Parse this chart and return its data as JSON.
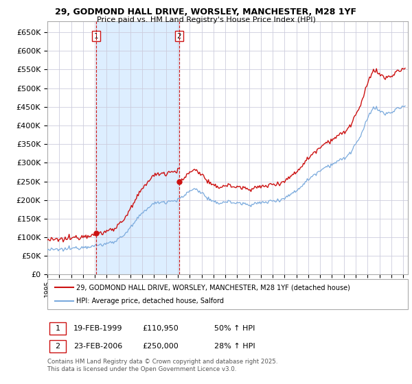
{
  "title": "29, GODMOND HALL DRIVE, WORSLEY, MANCHESTER, M28 1YF",
  "subtitle": "Price paid vs. HM Land Registry's House Price Index (HPI)",
  "legend_line1": "29, GODMOND HALL DRIVE, WORSLEY, MANCHESTER, M28 1YF (detached house)",
  "legend_line2": "HPI: Average price, detached house, Salford",
  "transaction1_date": "19-FEB-1999",
  "transaction1_price": "£110,950",
  "transaction1_hpi": "50% ↑ HPI",
  "transaction2_date": "23-FEB-2006",
  "transaction2_price": "£250,000",
  "transaction2_hpi": "28% ↑ HPI",
  "footer": "Contains HM Land Registry data © Crown copyright and database right 2025.\nThis data is licensed under the Open Government Licence v3.0.",
  "hpi_color": "#7aaadd",
  "price_color": "#cc1111",
  "vline_color": "#cc1111",
  "grid_color": "#ccccdd",
  "shade_color": "#ddeeff",
  "background_color": "#ffffff",
  "ylim": [
    0,
    680000
  ],
  "yticks": [
    0,
    50000,
    100000,
    150000,
    200000,
    250000,
    300000,
    350000,
    400000,
    450000,
    500000,
    550000,
    600000,
    650000
  ],
  "t1_year": 1999.12,
  "t2_year": 2006.12,
  "t1_price": 110950,
  "t2_price": 250000
}
